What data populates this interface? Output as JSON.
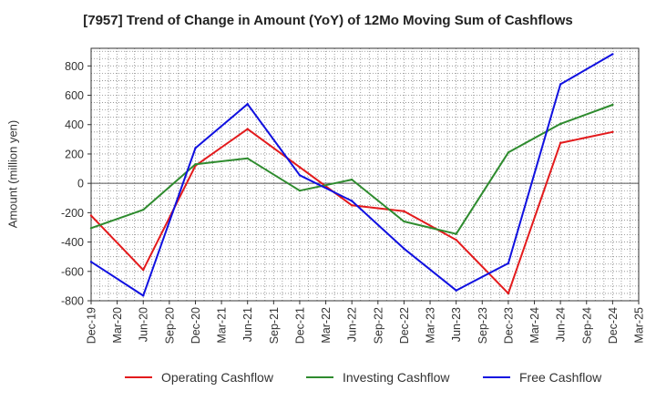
{
  "chart_data": {
    "type": "line",
    "title": "[7957]  Trend of Change in Amount (YoY) of 12Mo Moving Sum of Cashflows",
    "xlabel": "",
    "ylabel": "Amount (million yen)",
    "ylim": [
      -800,
      920
    ],
    "yticks": [
      -800,
      -600,
      -400,
      -200,
      0,
      200,
      400,
      600,
      800
    ],
    "categories": [
      "Dec-19",
      "Mar-20",
      "Jun-20",
      "Sep-20",
      "Dec-20",
      "Mar-21",
      "Jun-21",
      "Sep-21",
      "Dec-21",
      "Mar-22",
      "Jun-22",
      "Sep-22",
      "Dec-22",
      "Mar-23",
      "Jun-23",
      "Sep-23",
      "Dec-23",
      "Mar-24",
      "Jun-24",
      "Sep-24",
      "Dec-24",
      "Mar-25"
    ],
    "grid": true,
    "legend_position": "bottom",
    "series": [
      {
        "name": "Operating Cashflow",
        "color": "#e31a1c",
        "values": [
          -220,
          null,
          -590,
          null,
          120,
          null,
          370,
          null,
          110,
          null,
          -150,
          null,
          -190,
          null,
          -385,
          null,
          -750,
          null,
          275,
          null,
          350,
          null
        ]
      },
      {
        "name": "Investing Cashflow",
        "color": "#2e8b2e",
        "values": [
          -305,
          null,
          -180,
          null,
          130,
          null,
          170,
          null,
          -50,
          null,
          25,
          null,
          -260,
          null,
          -345,
          null,
          210,
          null,
          405,
          null,
          535,
          null
        ]
      },
      {
        "name": "Free Cashflow",
        "color": "#1010e0",
        "values": [
          -535,
          null,
          -765,
          null,
          240,
          null,
          540,
          null,
          55,
          null,
          -120,
          null,
          -445,
          null,
          -730,
          null,
          -545,
          null,
          675,
          null,
          880,
          null
        ]
      }
    ]
  }
}
